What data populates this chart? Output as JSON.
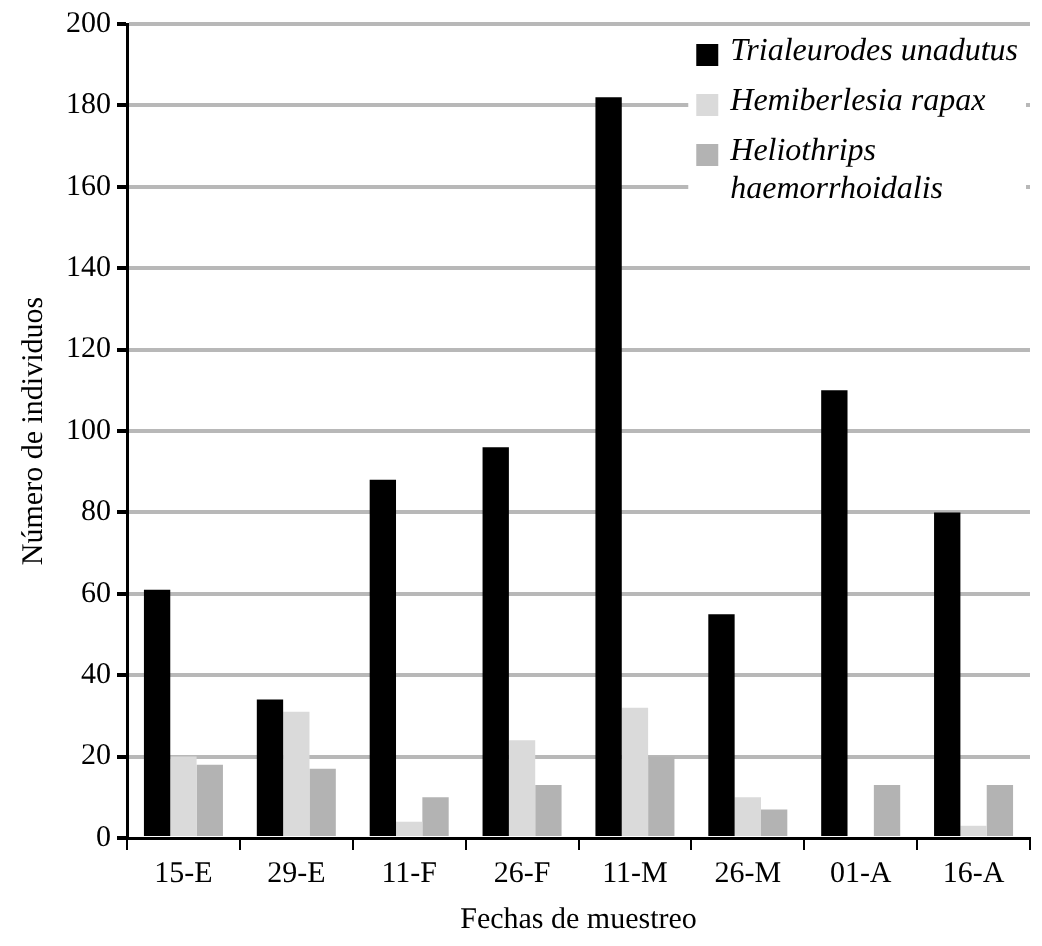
{
  "chart_data": {
    "type": "bar",
    "xlabel": "Fechas de muestreo",
    "ylabel": "Número de individuos",
    "categories": [
      "15-E",
      "29-E",
      "11-F",
      "26-F",
      "11-M",
      "26-M",
      "01-A",
      "16-A"
    ],
    "series": [
      {
        "name": "Trialeurodes unadutus",
        "color": "#000000",
        "values": [
          61,
          34,
          88,
          96,
          182,
          55,
          110,
          80
        ]
      },
      {
        "name": "Hemiberlesia rapax",
        "color": "#dadada",
        "values": [
          20,
          31,
          4,
          24,
          32,
          10,
          0,
          3
        ]
      },
      {
        "name": "Heliothrips haemorrhoidalis",
        "color": "#b3b3b3",
        "values": [
          18,
          17,
          10,
          13,
          20,
          7,
          13,
          13
        ]
      }
    ],
    "ylim": [
      0,
      200
    ],
    "yticks": [
      0,
      20,
      40,
      60,
      80,
      100,
      120,
      140,
      160,
      180,
      200
    ],
    "grid": "y",
    "legend": "top right"
  }
}
